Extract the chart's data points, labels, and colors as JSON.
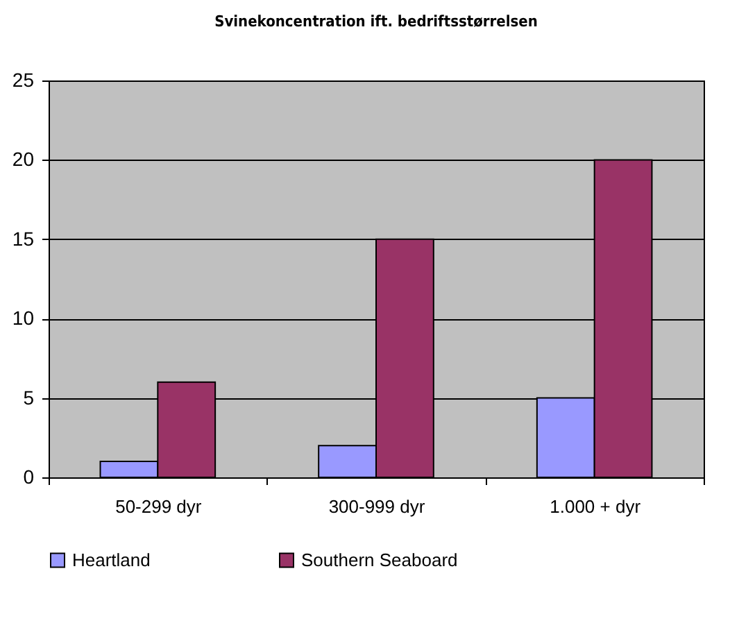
{
  "chart_data": {
    "type": "bar",
    "title": "Svinekoncentration ift. bedriftsstørrelsen",
    "categories": [
      "50-299 dyr",
      "300-999 dyr",
      "1.000 + dyr"
    ],
    "series": [
      {
        "name": "Heartland",
        "color": "#9999ff",
        "values": [
          1,
          2,
          5
        ]
      },
      {
        "name": "Southern Seaboard",
        "color": "#993366",
        "values": [
          6,
          15,
          20
        ]
      }
    ],
    "ylim": [
      0,
      25
    ],
    "yticks": [
      0,
      5,
      10,
      15,
      20,
      25
    ],
    "grid": "y",
    "legend": "bottom"
  }
}
